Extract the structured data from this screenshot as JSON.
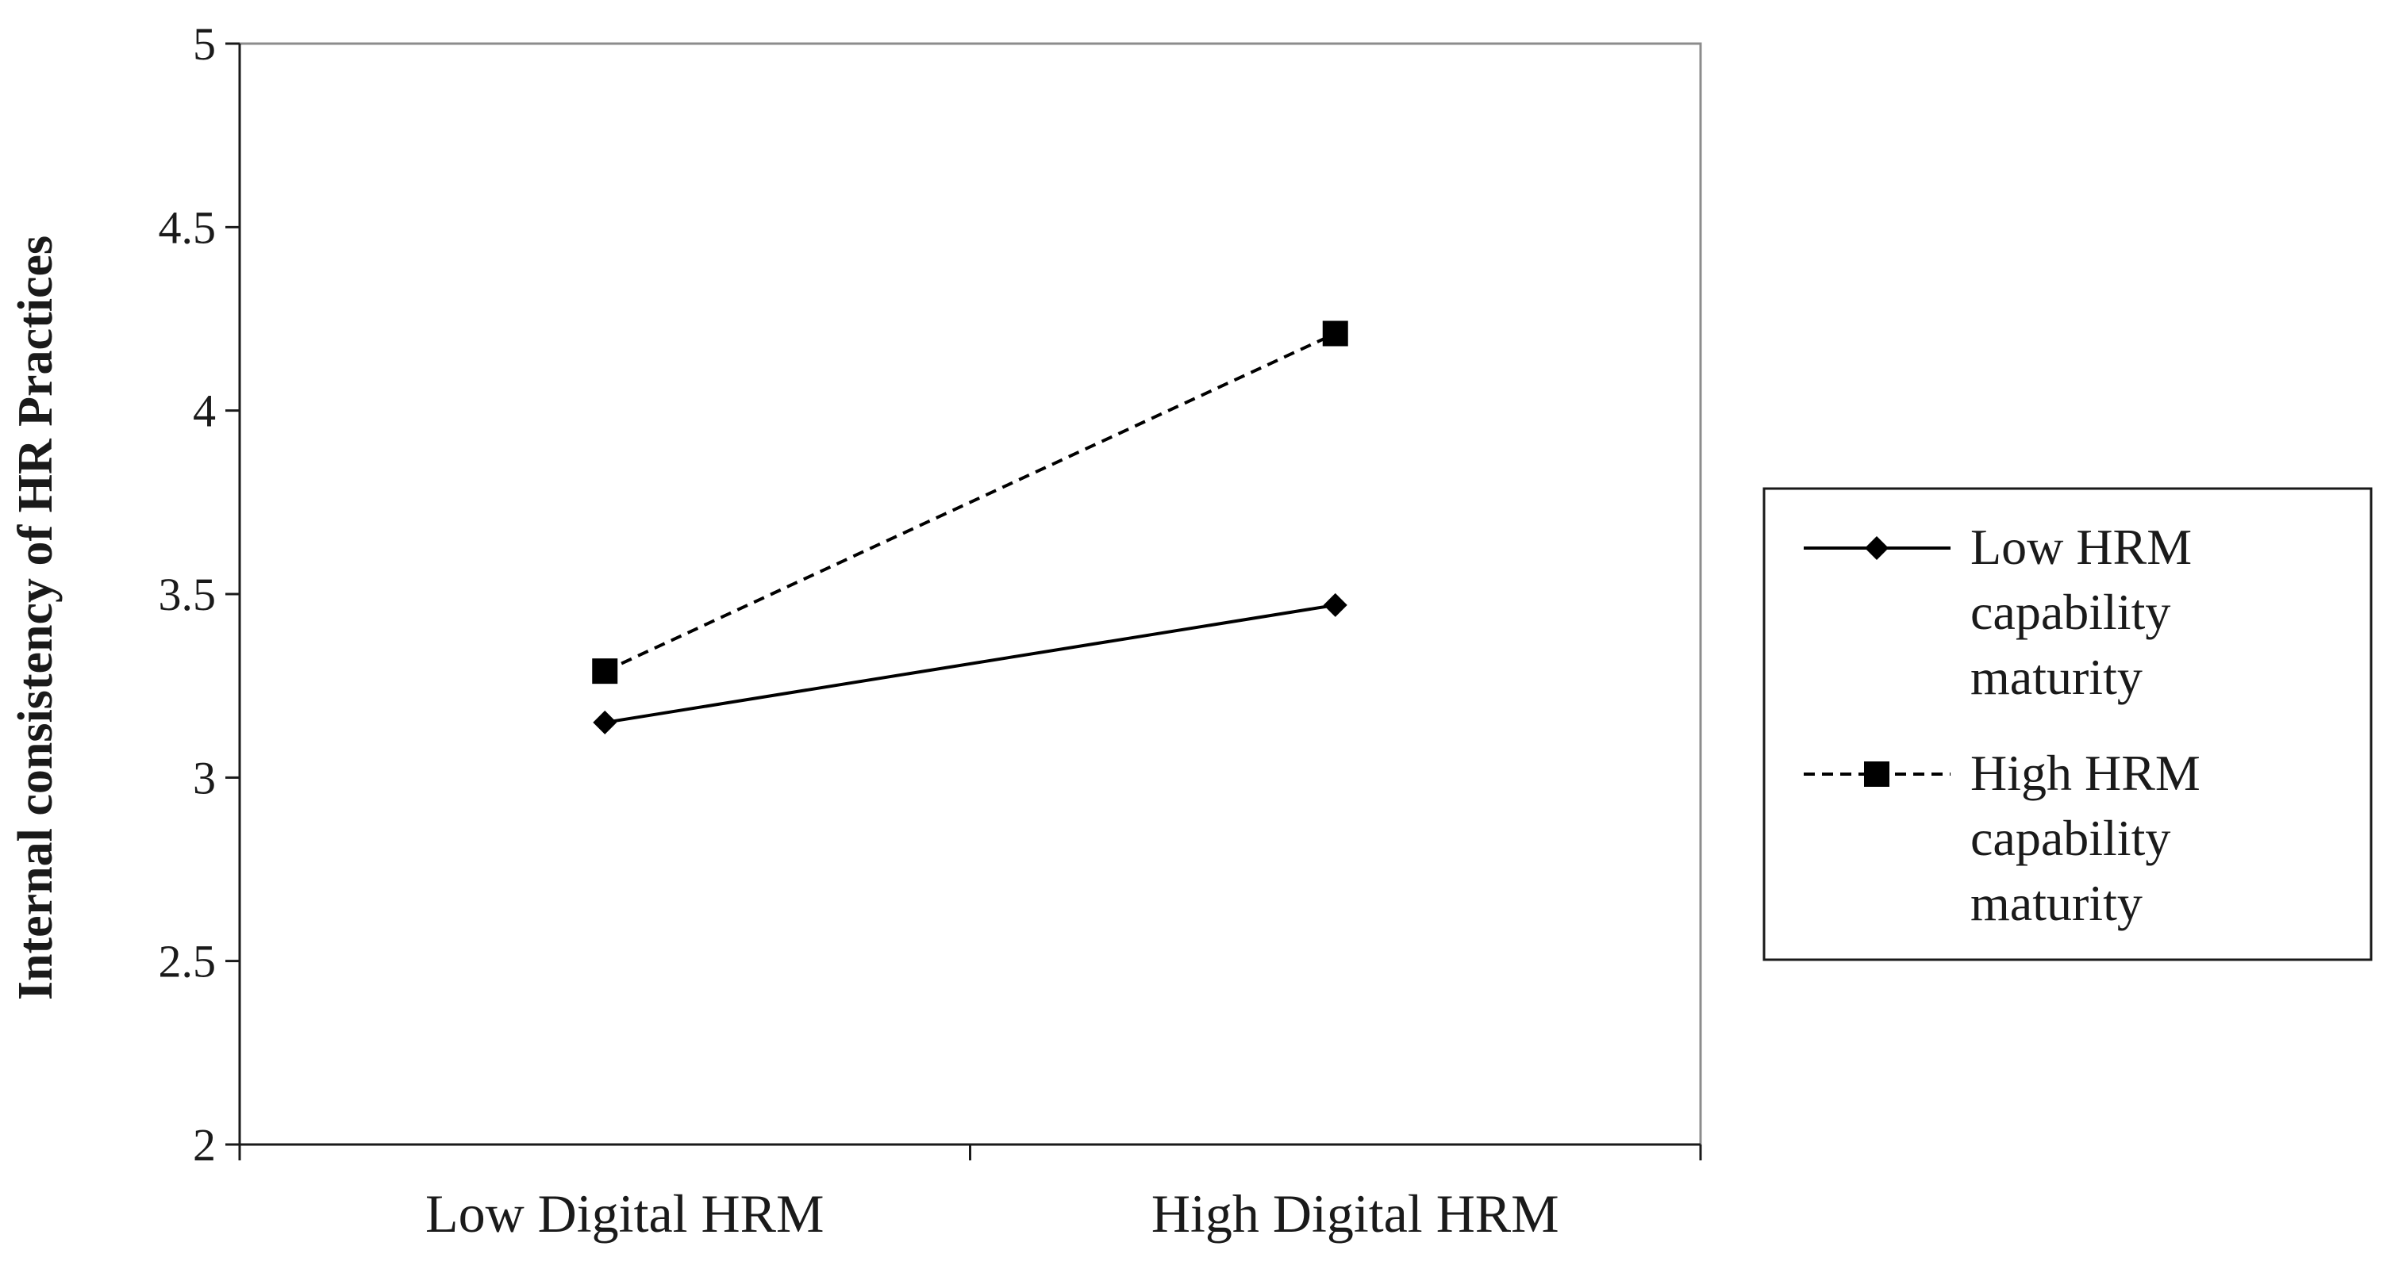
{
  "chart_data": {
    "type": "line",
    "title": "",
    "ylabel": "Internal consistency of HR Practices",
    "xlabel": "",
    "categories": [
      "Low Digital HRM",
      "High Digital HRM"
    ],
    "ylim": [
      2,
      5
    ],
    "yticks": [
      "2",
      "2.5",
      "3",
      "3.5",
      "4",
      "4.5",
      "5"
    ],
    "grid": false,
    "legend_position": "right",
    "series": [
      {
        "name_lines": [
          "Low HRM",
          "capability",
          "maturity"
        ],
        "values": [
          3.15,
          3.47
        ],
        "marker": "diamond",
        "line_style": "solid",
        "color": "#000000"
      },
      {
        "name_lines": [
          "High HRM",
          "capability",
          "maturity"
        ],
        "values": [
          3.29,
          4.21
        ],
        "marker": "square",
        "line_style": "dashed",
        "color": "#000000"
      }
    ]
  }
}
